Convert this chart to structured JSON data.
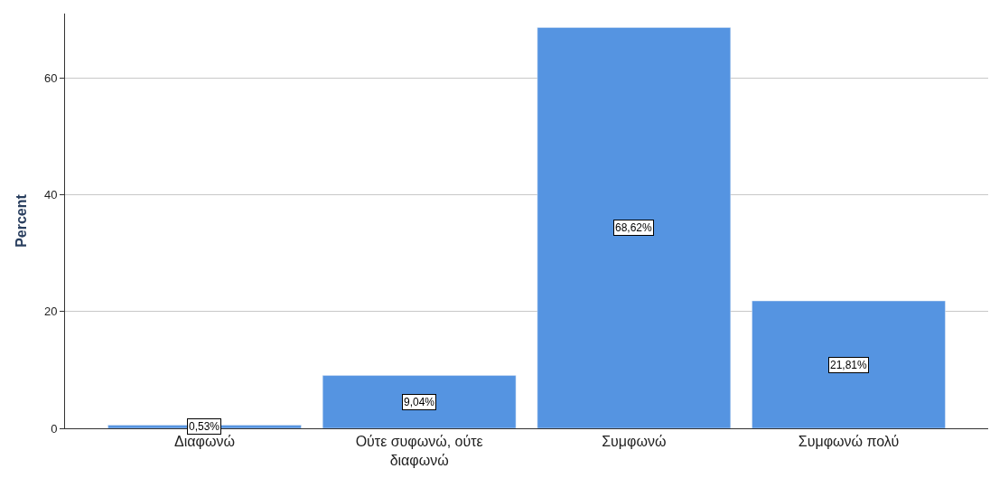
{
  "chart_data": {
    "type": "bar",
    "ylabel": "Percent",
    "categories": [
      "Διαφωνώ",
      "Ούτε συφωνώ, ούτε διαφωνώ",
      "Συμφωνώ",
      "Συμφωνώ πολύ"
    ],
    "values": [
      0.53,
      9.04,
      68.62,
      21.81
    ],
    "value_labels": [
      "0,53%",
      "9,04%",
      "68,62%",
      "21,81%"
    ],
    "color": "#5594e1",
    "ylim": [
      0,
      71
    ],
    "yticks": [
      0,
      20,
      40,
      60
    ],
    "grid": "y"
  }
}
